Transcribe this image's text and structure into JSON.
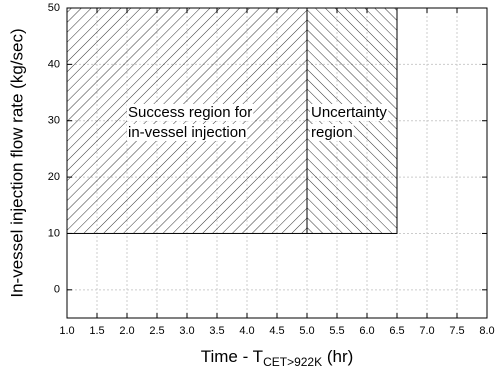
{
  "chart_data": {
    "type": "region",
    "xlabel": {
      "text": "Time - T",
      "subscript": "CET>922K",
      "suffix": " (hr)"
    },
    "ylabel": "In-vessel injection flow rate (kg/sec)",
    "xlim": [
      1,
      8
    ],
    "ylim": [
      -5,
      50
    ],
    "xticks": [
      {
        "value": 1,
        "label": "1.0"
      },
      {
        "value": 1.5,
        "label": "1.5"
      },
      {
        "value": 2,
        "label": "2.0"
      },
      {
        "value": 2.5,
        "label": "2.5"
      },
      {
        "value": 3,
        "label": "3.0"
      },
      {
        "value": 3.5,
        "label": "3.5"
      },
      {
        "value": 4,
        "label": "4.0"
      },
      {
        "value": 4.5,
        "label": "4.5"
      },
      {
        "value": 5,
        "label": "5.0"
      },
      {
        "value": 5.5,
        "label": "5.5"
      },
      {
        "value": 6,
        "label": "6.0"
      },
      {
        "value": 6.5,
        "label": "6.5"
      },
      {
        "value": 7,
        "label": "7.0"
      },
      {
        "value": 7.5,
        "label": "7.5"
      },
      {
        "value": 8,
        "label": "8.0"
      }
    ],
    "yticks": [
      0,
      10,
      20,
      30,
      40,
      50
    ],
    "grid": true,
    "regions": [
      {
        "label_lines": [
          "Success region for",
          "in-vessel injection"
        ],
        "hatch": "forward",
        "x": [
          1,
          5
        ],
        "y": [
          10,
          50
        ]
      },
      {
        "label_lines": [
          "Uncertainty",
          "region"
        ],
        "hatch": "backward",
        "x": [
          5,
          6.5
        ],
        "y": [
          10,
          50
        ]
      }
    ]
  }
}
